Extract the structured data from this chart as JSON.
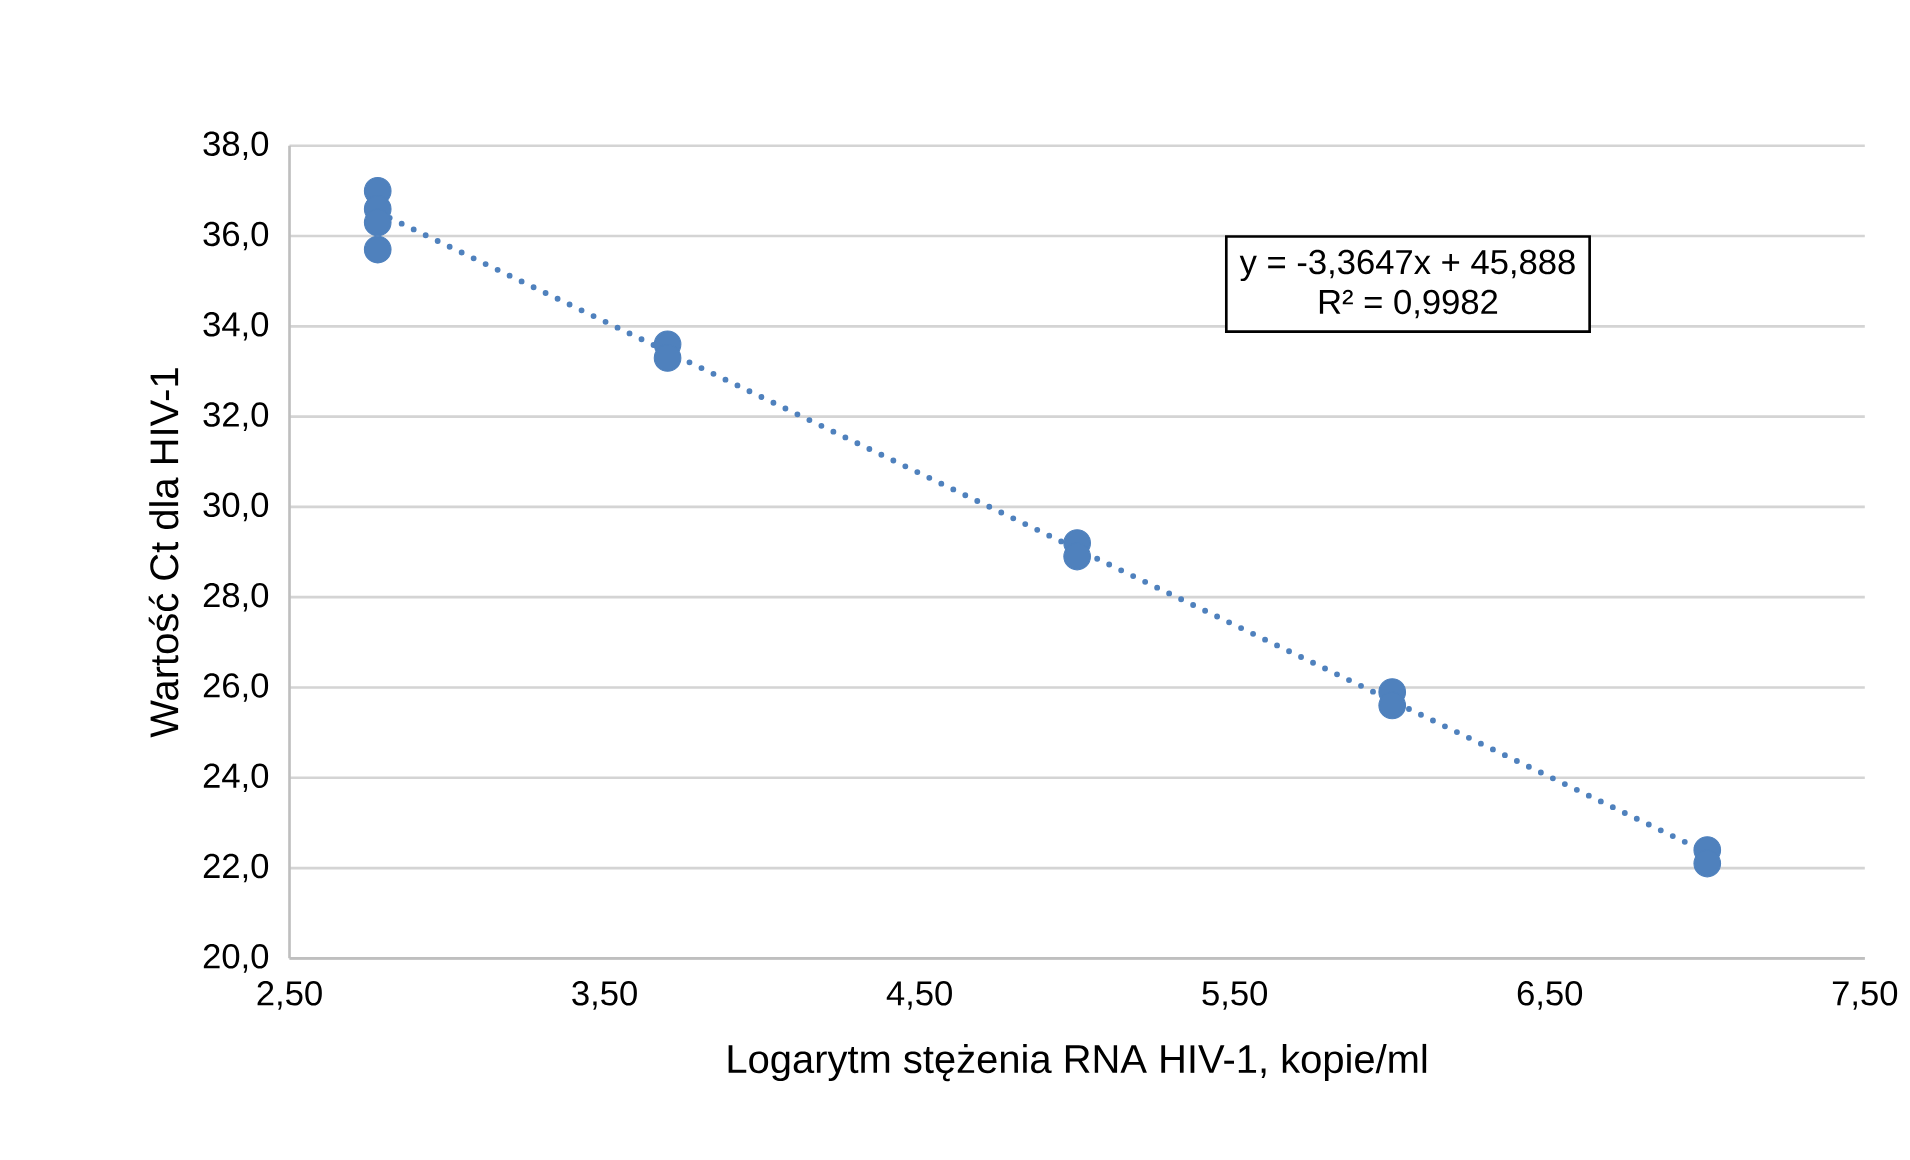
{
  "chart_data": {
    "type": "scatter",
    "xlabel": "Logarytm stężenia RNA HIV-1, kopie/ml",
    "ylabel": "Wartość Ct dla HIV-1",
    "series": [
      {
        "type": "scatter",
        "color": "#4f81bd",
        "marker": "circle",
        "x": [
          2.78,
          2.78,
          2.78,
          2.78,
          3.7,
          3.7,
          5.0,
          5.0,
          6.0,
          6.0,
          7.0,
          7.0
        ],
        "values": [
          37.0,
          36.6,
          36.3,
          35.7,
          33.6,
          33.3,
          29.2,
          28.9,
          25.9,
          25.6,
          22.4,
          22.1
        ]
      },
      {
        "type": "line",
        "color": "#4f81bd",
        "line_style": "dotted",
        "marker": "none",
        "x": [
          2.78,
          7.0
        ],
        "values": [
          36.53,
          22.34
        ]
      }
    ],
    "annotations": [
      "y = -3,3647x + 45,888",
      "R² = 0,9982"
    ],
    "xlim": [
      2.5,
      7.5
    ],
    "xticks": [
      {
        "value": 2.5,
        "label": "2,50"
      },
      {
        "value": 3.5,
        "label": "3,50"
      },
      {
        "value": 4.5,
        "label": "4,50"
      },
      {
        "value": 5.5,
        "label": "5,50"
      },
      {
        "value": 6.5,
        "label": "6,50"
      },
      {
        "value": 7.5,
        "label": "7,50"
      }
    ],
    "ylim": [
      20,
      38
    ],
    "yticks": [
      {
        "value": 20,
        "label": "20,0"
      },
      {
        "value": 22,
        "label": "22,0"
      },
      {
        "value": 24,
        "label": "24,0"
      },
      {
        "value": 26,
        "label": "26,0"
      },
      {
        "value": 28,
        "label": "28,0"
      },
      {
        "value": 30,
        "label": "30,0"
      },
      {
        "value": 32,
        "label": "32,0"
      },
      {
        "value": 34,
        "label": "34,0"
      },
      {
        "value": 36,
        "label": "36,0"
      },
      {
        "value": 38,
        "label": "38,0"
      }
    ],
    "grid": "y"
  }
}
